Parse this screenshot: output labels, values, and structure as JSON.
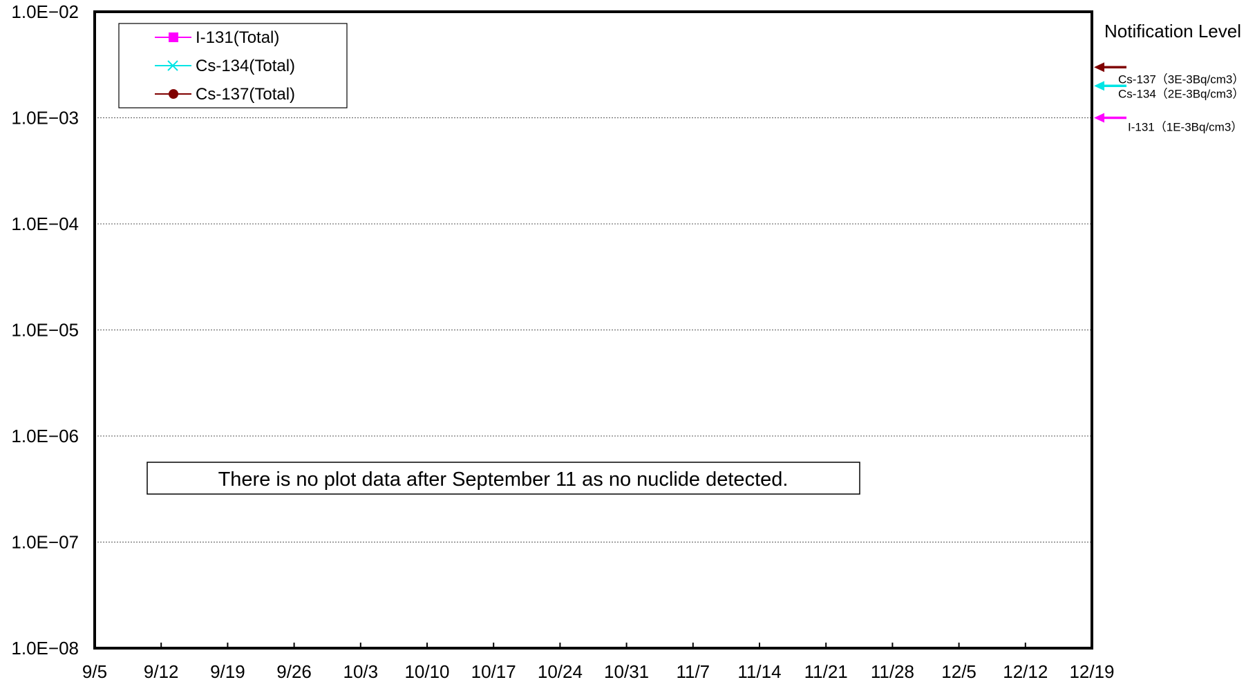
{
  "chart_data": {
    "type": "line",
    "yscale": "log",
    "ylim": [
      1e-08,
      0.01
    ],
    "y_ticks": [
      {
        "value": 0.01,
        "label": "1.0E−02"
      },
      {
        "value": 0.001,
        "label": "1.0E−03"
      },
      {
        "value": 0.0001,
        "label": "1.0E−04"
      },
      {
        "value": 1e-05,
        "label": "1.0E−05"
      },
      {
        "value": 1e-06,
        "label": "1.0E−06"
      },
      {
        "value": 1e-07,
        "label": "1.0E−07"
      },
      {
        "value": 1e-08,
        "label": "1.0E−08"
      }
    ],
    "x_ticks": [
      "9/5",
      "9/12",
      "9/19",
      "9/26",
      "10/3",
      "10/10",
      "10/17",
      "10/24",
      "10/31",
      "11/7",
      "11/14",
      "11/21",
      "11/28",
      "12/5",
      "12/12",
      "12/19"
    ],
    "grid": {
      "horizontal": true,
      "vertical": false
    },
    "legend_position": "top-left",
    "series": [
      {
        "name": "I-131(Total)",
        "color": "#ff00ff",
        "marker": "square",
        "values": []
      },
      {
        "name": "Cs-134(Total)",
        "color": "#00e5e5",
        "marker": "x",
        "values": []
      },
      {
        "name": "Cs-137(Total)",
        "color": "#800000",
        "marker": "circle",
        "values": []
      }
    ],
    "notification_title": "Notification Level",
    "notification_levels": [
      {
        "label": "Cs-137（3E-3Bq/cm3）",
        "value": 0.003,
        "color": "#800000"
      },
      {
        "label": "Cs-134（2E-3Bq/cm3）",
        "value": 0.002,
        "color": "#00e5e5"
      },
      {
        "label": "I-131（1E-3Bq/cm3）",
        "value": 0.001,
        "color": "#ff00ff"
      }
    ],
    "note": "There is no plot data after September 11 as no nuclide detected."
  }
}
